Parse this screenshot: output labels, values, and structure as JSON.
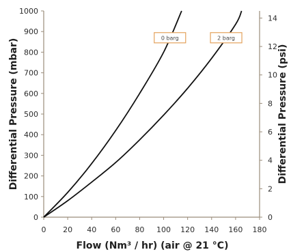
{
  "colors": {
    "axis": "#9a8c7a",
    "curve": "#111111",
    "label_box": "#e3a15b",
    "text": "#2b2b2b",
    "background": "#ffffff"
  },
  "chart_data": {
    "type": "line",
    "xlabel": "Flow (Nm³ / hr) (air @ 21 °C)",
    "ylabel": "Differential Pressure (mbar)",
    "y2label": "Differential Pressure (psi)",
    "xlim": [
      0,
      180
    ],
    "ylim": [
      0,
      1000
    ],
    "y2lim": [
      0,
      14.5
    ],
    "x_ticks": [
      "0",
      "20",
      "40",
      "60",
      "80",
      "100",
      "120",
      "140",
      "160",
      "180"
    ],
    "y_ticks": [
      "0",
      "100",
      "200",
      "300",
      "400",
      "500",
      "600",
      "700",
      "800",
      "900",
      "1000"
    ],
    "y2_ticks": [
      "0",
      "2",
      "4",
      "6",
      "8",
      "10",
      "12",
      "14"
    ],
    "grid": false,
    "series": [
      {
        "name": "0 barg",
        "x": [
          0,
          20,
          40,
          60,
          80,
          100,
          115
        ],
        "y": [
          0,
          120,
          260,
          420,
          600,
          800,
          1000
        ]
      },
      {
        "name": "2 barg",
        "x": [
          0,
          20,
          40,
          60,
          80,
          100,
          120,
          140,
          160,
          165
        ],
        "y": [
          0,
          80,
          170,
          265,
          375,
          495,
          625,
          770,
          935,
          1000
        ]
      }
    ]
  }
}
